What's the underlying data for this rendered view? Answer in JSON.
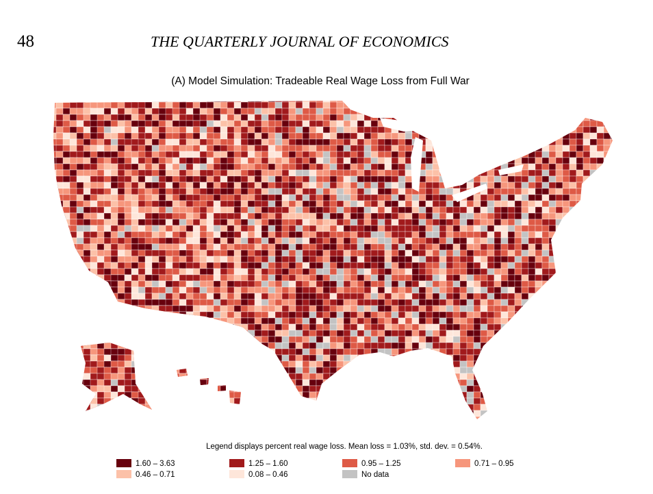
{
  "header": {
    "page_number": "48",
    "journal": "THE QUARTERLY JOURNAL OF ECONOMICS"
  },
  "figure": {
    "title": "(A)  Model Simulation: Tradeable Real Wage Loss from Full War",
    "legend": {
      "note": "Legend displays percent real wage loss. Mean loss = 1.03%, std. dev. = 0.54%.",
      "entries": [
        {
          "label": "1.60 – 3.63",
          "color": "#67000d"
        },
        {
          "label": "1.25 – 1.60",
          "color": "#a11a1c"
        },
        {
          "label": "0.95 – 1.25",
          "color": "#de5a46"
        },
        {
          "label": "0.71 – 0.95",
          "color": "#f6967c"
        },
        {
          "label": "0.46 – 0.71",
          "color": "#fcc1a8"
        },
        {
          "label": "0.08 – 0.46",
          "color": "#fee6da"
        },
        {
          "label": "No data",
          "color": "#c3c3c3"
        }
      ]
    }
  }
}
